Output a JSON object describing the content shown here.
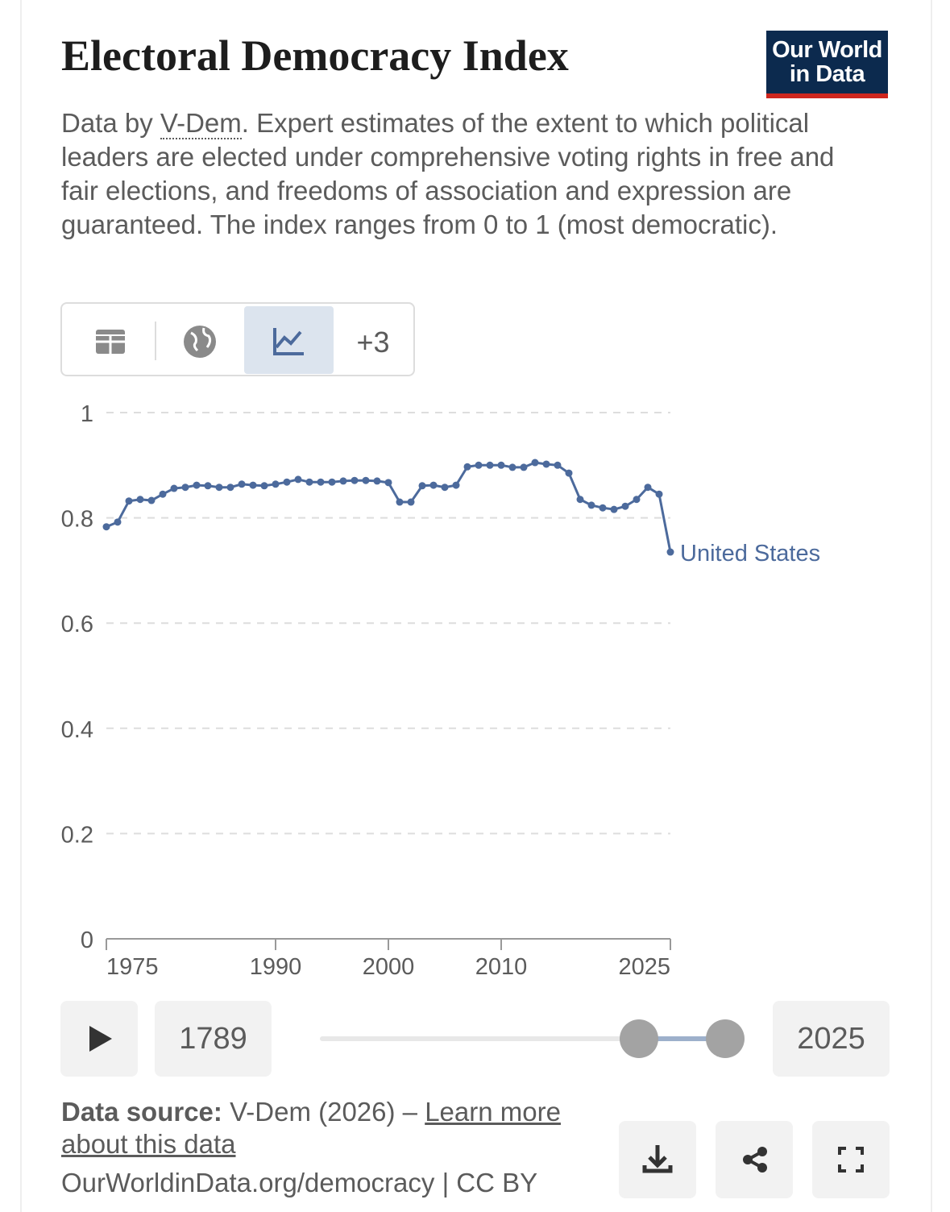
{
  "header": {
    "title": "Electoral Democracy Index",
    "logo_line1": "Our World",
    "logo_line2": "in Data",
    "subtitle_prefix": "Data by ",
    "subtitle_link": "V-Dem",
    "subtitle_rest": ". Expert estimates of the extent to which political leaders are elected under comprehensive voting rights in free and fair elections, and freedoms of association and expression are guaranteed. The index ranges from 0 to 1 (most democratic)."
  },
  "tabs": {
    "more": "+3"
  },
  "chart_data": {
    "type": "line",
    "x": [
      1975,
      1976,
      1977,
      1978,
      1979,
      1980,
      1981,
      1982,
      1983,
      1984,
      1985,
      1986,
      1987,
      1988,
      1989,
      1990,
      1991,
      1992,
      1993,
      1994,
      1995,
      1996,
      1997,
      1998,
      1999,
      2000,
      2001,
      2002,
      2003,
      2004,
      2005,
      2006,
      2007,
      2008,
      2009,
      2010,
      2011,
      2012,
      2013,
      2014,
      2015,
      2016,
      2017,
      2018,
      2019,
      2020,
      2021,
      2022,
      2023,
      2024,
      2025
    ],
    "series": [
      {
        "name": "United States",
        "color": "#4c6a9c",
        "values": [
          0.783,
          0.792,
          0.832,
          0.835,
          0.833,
          0.845,
          0.856,
          0.858,
          0.862,
          0.861,
          0.858,
          0.858,
          0.864,
          0.862,
          0.861,
          0.864,
          0.868,
          0.873,
          0.868,
          0.868,
          0.868,
          0.87,
          0.871,
          0.871,
          0.87,
          0.867,
          0.83,
          0.83,
          0.861,
          0.862,
          0.858,
          0.862,
          0.897,
          0.9,
          0.9,
          0.9,
          0.896,
          0.896,
          0.905,
          0.902,
          0.9,
          0.885,
          0.835,
          0.824,
          0.819,
          0.816,
          0.822,
          0.835,
          0.858,
          0.845,
          0.735
        ]
      }
    ],
    "xlim": [
      1975,
      2025
    ],
    "xticks": [
      1975,
      1990,
      2000,
      2010,
      2025
    ],
    "ylim": [
      0,
      1
    ],
    "yticks": [
      0,
      0.2,
      0.4,
      0.6,
      0.8,
      1
    ],
    "grid": true
  },
  "timeline": {
    "start": "1789",
    "end": "2025"
  },
  "footer": {
    "source_label": "Data source:",
    "source": " V-Dem (2026) – ",
    "learn_more": "Learn more about this data",
    "url": "OurWorldinData.org/democracy | CC BY"
  }
}
